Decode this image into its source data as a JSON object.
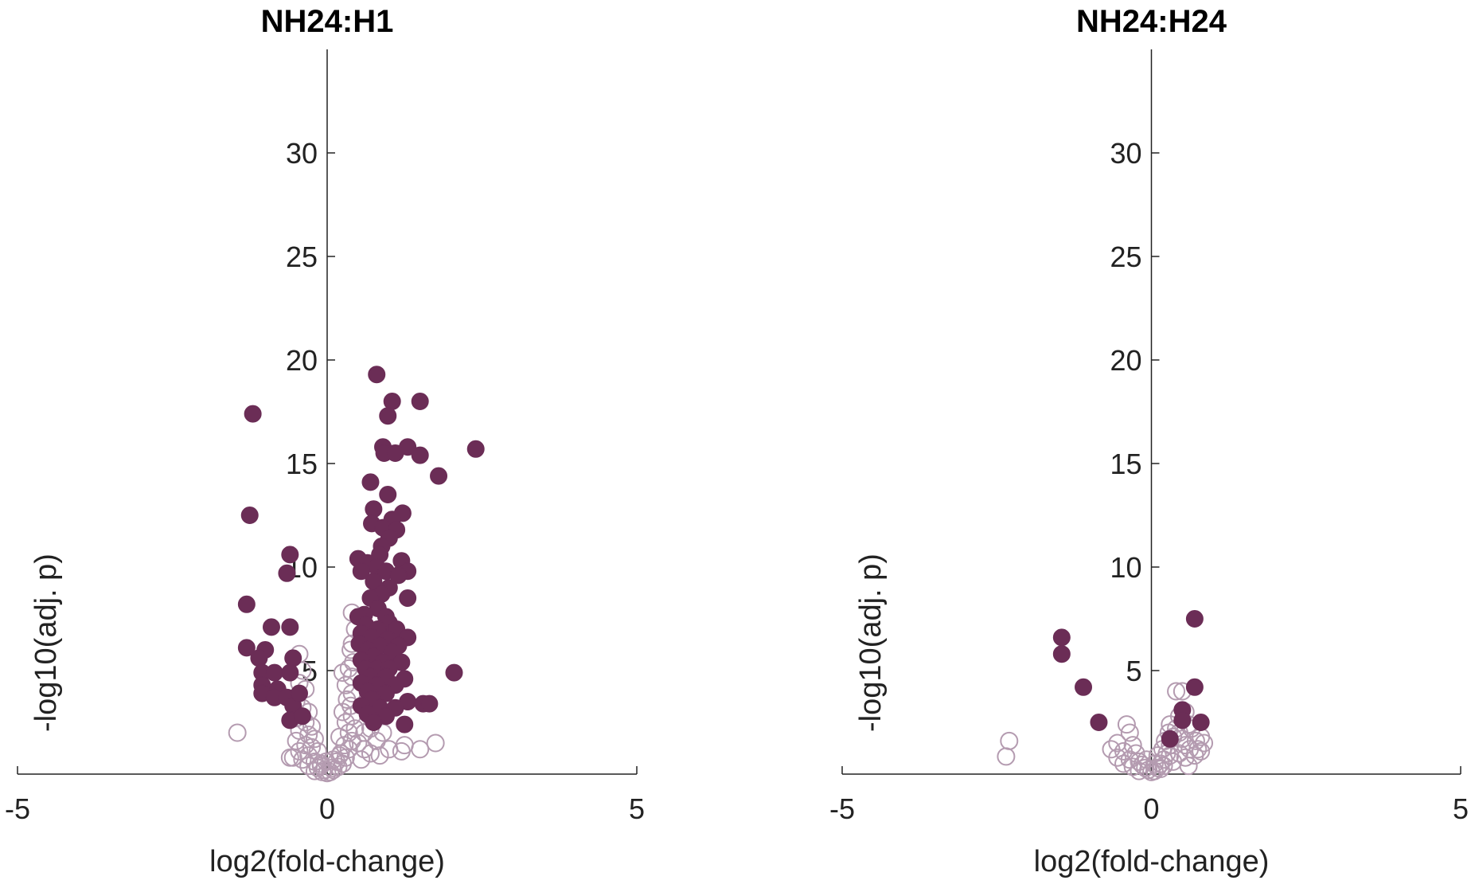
{
  "colors": {
    "significant": "#6b2d56",
    "nonsignificant": "#b49bb0",
    "axis": "#222222"
  },
  "chart_data": [
    {
      "type": "scatter",
      "title": "NH24:H1",
      "xlabel": "log2(fold-change)",
      "ylabel": "-log10(adj. p)",
      "xlim": [
        -5,
        5
      ],
      "ylim": [
        0,
        35
      ],
      "xticks": [
        -5,
        0,
        5
      ],
      "yticks": [
        5,
        10,
        15,
        20,
        25,
        30
      ],
      "grid": false,
      "series": [
        {
          "style": "filled",
          "points": [
            [
              -1.2,
              17.4
            ],
            [
              -1.25,
              12.5
            ],
            [
              -1.3,
              8.2
            ],
            [
              -1.3,
              6.1
            ],
            [
              -0.6,
              10.6
            ],
            [
              -0.65,
              9.7
            ],
            [
              -0.9,
              7.1
            ],
            [
              -0.6,
              7.1
            ],
            [
              -1.0,
              6.0
            ],
            [
              -1.1,
              5.6
            ],
            [
              -0.55,
              5.6
            ],
            [
              -1.05,
              4.9
            ],
            [
              -0.85,
              4.9
            ],
            [
              -0.6,
              4.9
            ],
            [
              -1.05,
              4.3
            ],
            [
              -0.8,
              4.1
            ],
            [
              -1.05,
              3.9
            ],
            [
              -0.85,
              3.7
            ],
            [
              -0.65,
              3.7
            ],
            [
              -0.55,
              3.3
            ],
            [
              -0.6,
              2.6
            ],
            [
              -0.45,
              3.9
            ],
            [
              -0.4,
              2.8
            ],
            [
              0.8,
              19.3
            ],
            [
              1.05,
              18.0
            ],
            [
              1.5,
              18.0
            ],
            [
              0.98,
              17.3
            ],
            [
              2.4,
              15.7
            ],
            [
              0.9,
              15.8
            ],
            [
              1.3,
              15.8
            ],
            [
              0.92,
              15.5
            ],
            [
              1.1,
              15.5
            ],
            [
              1.5,
              15.4
            ],
            [
              1.8,
              14.4
            ],
            [
              0.7,
              14.1
            ],
            [
              0.98,
              13.5
            ],
            [
              0.75,
              12.8
            ],
            [
              1.22,
              12.6
            ],
            [
              1.05,
              12.3
            ],
            [
              0.72,
              12.1
            ],
            [
              0.9,
              11.9
            ],
            [
              1.12,
              11.8
            ],
            [
              1.0,
              11.4
            ],
            [
              0.88,
              11.0
            ],
            [
              0.85,
              10.6
            ],
            [
              0.5,
              10.4
            ],
            [
              0.65,
              10.2
            ],
            [
              1.2,
              10.3
            ],
            [
              0.8,
              10.0
            ],
            [
              0.55,
              9.8
            ],
            [
              0.95,
              9.8
            ],
            [
              1.3,
              9.8
            ],
            [
              1.15,
              9.6
            ],
            [
              0.75,
              9.3
            ],
            [
              1.0,
              9.0
            ],
            [
              0.88,
              8.7
            ],
            [
              0.7,
              8.5
            ],
            [
              1.3,
              8.5
            ],
            [
              0.82,
              8.0
            ],
            [
              0.6,
              7.7
            ],
            [
              0.5,
              7.6
            ],
            [
              0.95,
              7.6
            ],
            [
              1.0,
              7.3
            ],
            [
              0.62,
              7.2
            ],
            [
              0.82,
              7.0
            ],
            [
              1.12,
              7.0
            ],
            [
              0.55,
              6.8
            ],
            [
              0.72,
              6.6
            ],
            [
              0.98,
              6.5
            ],
            [
              1.3,
              6.6
            ],
            [
              0.52,
              6.3
            ],
            [
              0.85,
              6.2
            ],
            [
              1.15,
              6.2
            ],
            [
              0.65,
              6.0
            ],
            [
              1.05,
              5.9
            ],
            [
              0.75,
              5.7
            ],
            [
              0.55,
              5.5
            ],
            [
              0.9,
              5.4
            ],
            [
              1.2,
              5.4
            ],
            [
              0.62,
              5.1
            ],
            [
              0.8,
              5.1
            ],
            [
              1.0,
              5.1
            ],
            [
              2.05,
              4.9
            ],
            [
              0.7,
              4.7
            ],
            [
              0.95,
              4.7
            ],
            [
              1.25,
              4.6
            ],
            [
              0.55,
              4.4
            ],
            [
              0.8,
              4.3
            ],
            [
              1.1,
              4.3
            ],
            [
              0.65,
              4.0
            ],
            [
              0.95,
              3.9
            ],
            [
              0.72,
              3.6
            ],
            [
              1.3,
              3.5
            ],
            [
              1.55,
              3.4
            ],
            [
              1.65,
              3.4
            ],
            [
              0.55,
              3.3
            ],
            [
              0.85,
              3.2
            ],
            [
              1.1,
              3.2
            ],
            [
              0.65,
              2.9
            ],
            [
              0.95,
              2.8
            ],
            [
              1.25,
              2.4
            ],
            [
              0.75,
              2.5
            ]
          ]
        },
        {
          "style": "open",
          "points": [
            [
              -1.45,
              2.0
            ],
            [
              -0.45,
              5.8
            ],
            [
              -0.4,
              5.0
            ],
            [
              -0.45,
              4.4
            ],
            [
              -0.35,
              4.1
            ],
            [
              -0.5,
              3.5
            ],
            [
              -0.4,
              3.2
            ],
            [
              -0.3,
              3.0
            ],
            [
              -0.5,
              2.7
            ],
            [
              -0.35,
              2.5
            ],
            [
              -0.25,
              2.3
            ],
            [
              -0.45,
              2.1
            ],
            [
              -0.3,
              1.9
            ],
            [
              -0.2,
              1.7
            ],
            [
              -0.5,
              1.6
            ],
            [
              -0.35,
              1.4
            ],
            [
              -0.25,
              1.3
            ],
            [
              -0.45,
              1.1
            ],
            [
              -0.15,
              1.1
            ],
            [
              -0.3,
              0.9
            ],
            [
              -0.55,
              0.8
            ],
            [
              -0.4,
              0.7
            ],
            [
              -0.2,
              0.6
            ],
            [
              -0.1,
              0.5
            ],
            [
              -0.3,
              0.4
            ],
            [
              -0.15,
              0.3
            ],
            [
              -0.05,
              0.2
            ],
            [
              -0.2,
              0.15
            ],
            [
              -0.08,
              0.1
            ],
            [
              0.0,
              0.05
            ],
            [
              0.05,
              0.1
            ],
            [
              0.1,
              0.2
            ],
            [
              0.18,
              0.35
            ],
            [
              0.25,
              0.5
            ],
            [
              0.15,
              0.6
            ],
            [
              0.3,
              0.8
            ],
            [
              0.22,
              1.0
            ],
            [
              0.35,
              1.2
            ],
            [
              0.28,
              1.4
            ],
            [
              0.4,
              1.6
            ],
            [
              0.2,
              1.8
            ],
            [
              0.35,
              2.0
            ],
            [
              0.45,
              2.2
            ],
            [
              0.3,
              2.5
            ],
            [
              0.4,
              2.8
            ],
            [
              0.25,
              3.0
            ],
            [
              0.38,
              3.3
            ],
            [
              0.32,
              3.6
            ],
            [
              0.4,
              3.9
            ],
            [
              0.3,
              4.3
            ],
            [
              0.4,
              4.7
            ],
            [
              0.35,
              5.1
            ],
            [
              0.25,
              4.9
            ],
            [
              0.42,
              5.4
            ],
            [
              0.38,
              6.0
            ],
            [
              0.4,
              6.3
            ],
            [
              0.45,
              7.0
            ],
            [
              0.4,
              7.8
            ],
            [
              0.5,
              1.5
            ],
            [
              0.6,
              1.2
            ],
            [
              0.7,
              1.0
            ],
            [
              0.85,
              0.9
            ],
            [
              1.0,
              1.2
            ],
            [
              1.2,
              1.1
            ],
            [
              1.25,
              1.4
            ],
            [
              1.5,
              1.2
            ],
            [
              1.75,
              1.5
            ],
            [
              0.55,
              0.7
            ],
            [
              0.8,
              1.6
            ],
            [
              0.9,
              2.0
            ],
            [
              -0.6,
              0.8
            ],
            [
              0.1,
              0.7
            ],
            [
              0.2,
              0.9
            ],
            [
              -0.1,
              0.4
            ],
            [
              0.08,
              0.3
            ],
            [
              -0.02,
              0.6
            ],
            [
              0.6,
              2.0
            ],
            [
              0.7,
              2.2
            ]
          ]
        }
      ]
    },
    {
      "type": "scatter",
      "title": "NH24:H24",
      "xlabel": "log2(fold-change)",
      "ylabel": "-log10(adj. p)",
      "xlim": [
        -5,
        5
      ],
      "ylim": [
        0,
        35
      ],
      "xticks": [
        -5,
        0,
        5
      ],
      "yticks": [
        5,
        10,
        15,
        20,
        25,
        30
      ],
      "grid": false,
      "series": [
        {
          "style": "filled",
          "points": [
            [
              -1.45,
              6.6
            ],
            [
              -1.45,
              5.8
            ],
            [
              -1.1,
              4.2
            ],
            [
              -0.85,
              2.5
            ],
            [
              0.7,
              7.5
            ],
            [
              0.7,
              4.2
            ],
            [
              0.5,
              3.1
            ],
            [
              0.8,
              2.5
            ],
            [
              0.5,
              2.6
            ],
            [
              0.3,
              1.7
            ]
          ]
        },
        {
          "style": "open",
          "points": [
            [
              -2.3,
              1.6
            ],
            [
              -2.35,
              0.85
            ],
            [
              -0.4,
              2.4
            ],
            [
              -0.35,
              2.0
            ],
            [
              -0.55,
              1.5
            ],
            [
              -0.3,
              1.4
            ],
            [
              -0.65,
              1.2
            ],
            [
              -0.45,
              1.1
            ],
            [
              -0.25,
              1.0
            ],
            [
              -0.55,
              0.8
            ],
            [
              -0.35,
              0.7
            ],
            [
              -0.2,
              0.6
            ],
            [
              -0.45,
              0.5
            ],
            [
              -0.15,
              0.45
            ],
            [
              -0.3,
              0.35
            ],
            [
              -0.1,
              0.3
            ],
            [
              -0.05,
              0.2
            ],
            [
              -0.2,
              0.15
            ],
            [
              0.0,
              0.1
            ],
            [
              0.05,
              0.15
            ],
            [
              0.1,
              0.3
            ],
            [
              0.15,
              0.5
            ],
            [
              0.2,
              0.7
            ],
            [
              0.1,
              0.9
            ],
            [
              0.25,
              1.0
            ],
            [
              0.18,
              1.2
            ],
            [
              0.3,
              1.4
            ],
            [
              0.22,
              1.6
            ],
            [
              0.35,
              1.8
            ],
            [
              0.28,
              2.0
            ],
            [
              0.4,
              2.2
            ],
            [
              0.3,
              2.4
            ],
            [
              0.45,
              2.0
            ],
            [
              0.5,
              1.7
            ],
            [
              0.55,
              1.4
            ],
            [
              0.62,
              1.2
            ],
            [
              0.72,
              1.6
            ],
            [
              0.8,
              1.8
            ],
            [
              0.75,
              1.2
            ],
            [
              0.65,
              2.2
            ],
            [
              0.45,
              1.0
            ],
            [
              0.55,
              0.8
            ],
            [
              0.35,
              0.6
            ],
            [
              0.8,
              1.1
            ],
            [
              0.4,
              4.0
            ],
            [
              0.5,
              4.0
            ],
            [
              0.55,
              3.0
            ],
            [
              0.45,
              2.8
            ],
            [
              0.6,
              2.4
            ],
            [
              0.3,
              0.9
            ],
            [
              0.15,
              0.25
            ],
            [
              -0.08,
              0.7
            ],
            [
              0.05,
              0.5
            ],
            [
              0.2,
              0.4
            ],
            [
              0.85,
              1.5
            ],
            [
              0.7,
              0.9
            ],
            [
              0.6,
              0.4
            ]
          ]
        }
      ]
    }
  ]
}
